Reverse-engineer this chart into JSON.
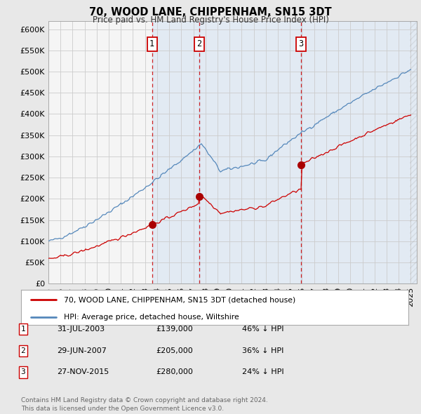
{
  "title": "70, WOOD LANE, CHIPPENHAM, SN15 3DT",
  "subtitle": "Price paid vs. HM Land Registry's House Price Index (HPI)",
  "ylim": [
    0,
    620000
  ],
  "yticks": [
    0,
    50000,
    100000,
    150000,
    200000,
    250000,
    300000,
    350000,
    400000,
    450000,
    500000,
    550000,
    600000
  ],
  "xlim_start": 1995.0,
  "xlim_end": 2025.5,
  "sale_dates": [
    2003.58,
    2007.5,
    2015.92
  ],
  "sale_prices": [
    139000,
    205000,
    280000
  ],
  "sale_labels": [
    "1",
    "2",
    "3"
  ],
  "vline_color": "#cc0000",
  "sale_dot_color": "#aa0000",
  "hpi_line_color": "#5588bb",
  "sale_line_color": "#cc0000",
  "shade_color": "#ddeeff",
  "background_color": "#e8e8e8",
  "plot_bg_color": "#f5f5f5",
  "legend_entries": [
    "70, WOOD LANE, CHIPPENHAM, SN15 3DT (detached house)",
    "HPI: Average price, detached house, Wiltshire"
  ],
  "table_rows": [
    [
      "1",
      "31-JUL-2003",
      "£139,000",
      "46% ↓ HPI"
    ],
    [
      "2",
      "29-JUN-2007",
      "£205,000",
      "36% ↓ HPI"
    ],
    [
      "3",
      "27-NOV-2015",
      "£280,000",
      "24% ↓ HPI"
    ]
  ],
  "footer": "Contains HM Land Registry data © Crown copyright and database right 2024.\nThis data is licensed under the Open Government Licence v3.0."
}
